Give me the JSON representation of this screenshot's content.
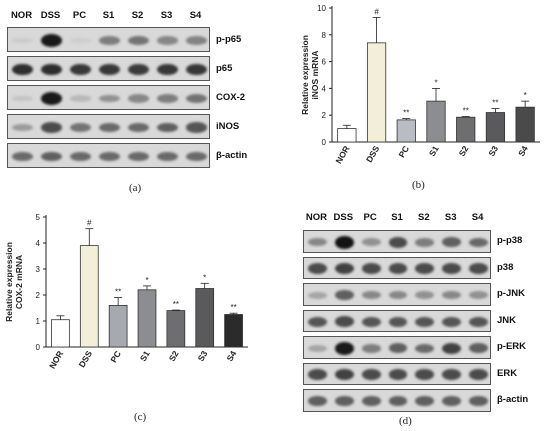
{
  "panel_a": {
    "lanes": [
      "NOR",
      "DSS",
      "PC",
      "S1",
      "S2",
      "S3",
      "S4"
    ],
    "blots": [
      {
        "label": "p-p65",
        "intensity": [
          0.06,
          0.95,
          0.05,
          0.45,
          0.5,
          0.4,
          0.42
        ]
      },
      {
        "label": "p65",
        "intensity": [
          0.85,
          0.85,
          0.8,
          0.8,
          0.78,
          0.8,
          0.8
        ]
      },
      {
        "label": "COX-2",
        "intensity": [
          0.1,
          0.95,
          0.15,
          0.35,
          0.4,
          0.45,
          0.5
        ]
      },
      {
        "label": "iNOS",
        "intensity": [
          0.3,
          0.7,
          0.5,
          0.55,
          0.55,
          0.6,
          0.65
        ]
      },
      {
        "label": "β-actin",
        "intensity": [
          0.55,
          0.6,
          0.55,
          0.55,
          0.55,
          0.55,
          0.55
        ]
      }
    ],
    "caption": "(a)"
  },
  "panel_d": {
    "lanes": [
      "NOR",
      "DSS",
      "PC",
      "S1",
      "S2",
      "S3",
      "S4"
    ],
    "blots": [
      {
        "label": "p-p38",
        "intensity": [
          0.4,
          0.98,
          0.35,
          0.7,
          0.45,
          0.6,
          0.55
        ]
      },
      {
        "label": "p38",
        "intensity": [
          0.7,
          0.75,
          0.7,
          0.7,
          0.7,
          0.7,
          0.7
        ]
      },
      {
        "label": "p-JNK",
        "intensity": [
          0.25,
          0.6,
          0.4,
          0.4,
          0.35,
          0.4,
          0.35
        ]
      },
      {
        "label": "JNK",
        "intensity": [
          0.65,
          0.7,
          0.65,
          0.65,
          0.65,
          0.65,
          0.65
        ]
      },
      {
        "label": "p-ERK",
        "intensity": [
          0.25,
          0.95,
          0.45,
          0.6,
          0.55,
          0.75,
          0.6
        ]
      },
      {
        "label": "ERK",
        "intensity": [
          0.7,
          0.75,
          0.7,
          0.7,
          0.7,
          0.7,
          0.7
        ]
      },
      {
        "label": "β-actin",
        "intensity": [
          0.6,
          0.6,
          0.6,
          0.6,
          0.6,
          0.6,
          0.6
        ]
      }
    ],
    "caption": "(d)"
  },
  "chart_data": [
    {
      "type": "bar",
      "id": "b",
      "categories": [
        "NOR",
        "DSS",
        "PC",
        "S1",
        "S2",
        "S3",
        "S4"
      ],
      "values": [
        1.0,
        7.4,
        1.65,
        3.05,
        1.85,
        2.2,
        2.6
      ],
      "errors": [
        0.25,
        1.9,
        0.1,
        0.95,
        0.05,
        0.3,
        0.45
      ],
      "significance": [
        "",
        "#",
        "**",
        "*",
        "**",
        "**",
        "*"
      ],
      "colors": [
        "#ffffff",
        "#f3eed7",
        "#b9bcc3",
        "#8c8d90",
        "#6e6e70",
        "#5a5a5c",
        "#4a4a4b"
      ],
      "ylabel": "Relative expression iNOS mRNA",
      "ylabel_lines": [
        "Relative expression",
        "iNOS mRNA"
      ],
      "ylim": [
        0,
        10
      ],
      "yticks": [
        "0",
        "2",
        "4",
        "6",
        "8",
        "10"
      ],
      "caption": "(b)"
    },
    {
      "type": "bar",
      "id": "c",
      "categories": [
        "NOR",
        "DSS",
        "PC",
        "S1",
        "S2",
        "S3",
        "S4"
      ],
      "values": [
        1.05,
        3.9,
        1.6,
        2.2,
        1.4,
        2.25,
        1.25
      ],
      "errors": [
        0.15,
        0.65,
        0.3,
        0.15,
        0.02,
        0.2,
        0.05
      ],
      "significance": [
        "",
        "#",
        "**",
        "*",
        "**",
        "*",
        "**"
      ],
      "colors": [
        "#ffffff",
        "#f3eed7",
        "#a6a9b0",
        "#8c8d90",
        "#6e6e70",
        "#5a5a5c",
        "#2b2b2b"
      ],
      "ylabel": "Relative expression COX-2 mRNA",
      "ylabel_lines": [
        "Relative expression",
        "COX-2 mRNA"
      ],
      "ylim": [
        0,
        5
      ],
      "yticks": [
        "0",
        "1",
        "2",
        "3",
        "4",
        "5"
      ],
      "caption": "(c)"
    }
  ]
}
